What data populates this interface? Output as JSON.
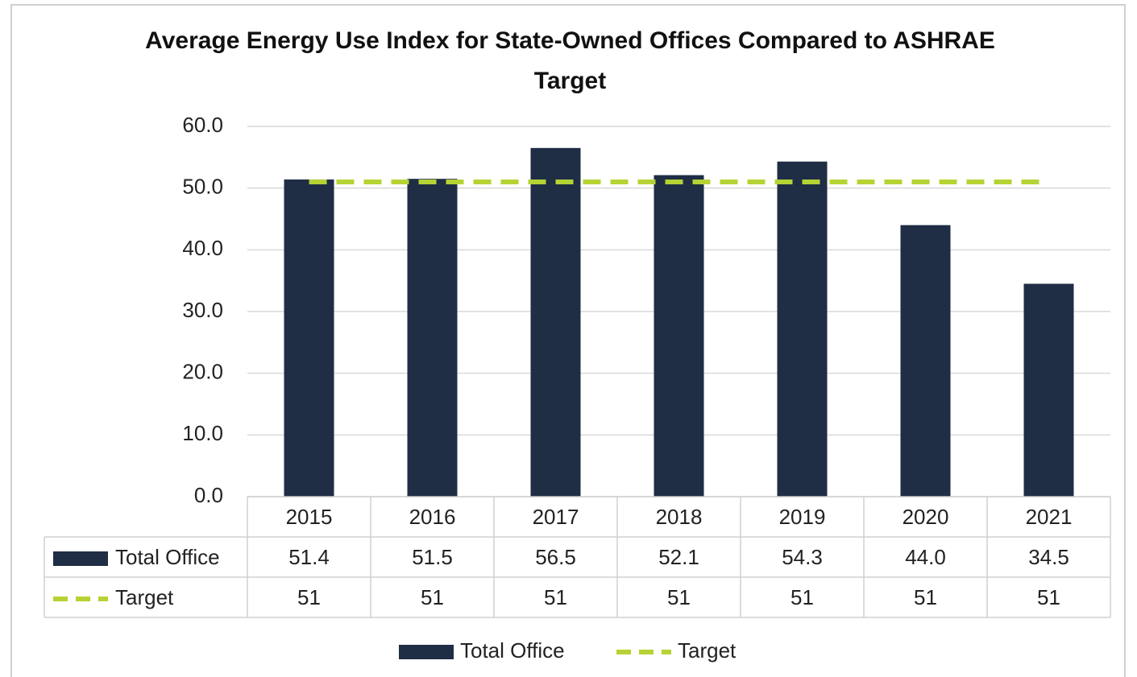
{
  "chart_data": {
    "type": "bar",
    "title": "Average Energy Use Index for State-Owned Offices Compared to ASHRAE Target",
    "categories": [
      "2015",
      "2016",
      "2017",
      "2018",
      "2019",
      "2020",
      "2021"
    ],
    "series": [
      {
        "name": "Total Office",
        "type": "bar",
        "color": "#1f2d45",
        "values": [
          51.4,
          51.5,
          56.5,
          52.1,
          54.3,
          44.0,
          34.5
        ],
        "value_labels": [
          "51.4",
          "51.5",
          "56.5",
          "52.1",
          "54.3",
          "44.0",
          "34.5"
        ]
      },
      {
        "name": "Target",
        "type": "line",
        "color": "#b5d334",
        "dashed": true,
        "values": [
          51,
          51,
          51,
          51,
          51,
          51,
          51
        ]
      }
    ],
    "ylim": [
      0,
      60
    ],
    "yticks": [
      {
        "value": 0,
        "label": "0.0"
      },
      {
        "value": 10,
        "label": "10.0"
      },
      {
        "value": 20,
        "label": "20.0"
      },
      {
        "value": 30,
        "label": "30.0"
      },
      {
        "value": 40,
        "label": "40.0"
      },
      {
        "value": 50,
        "label": "50.0"
      },
      {
        "value": 60,
        "label": "60.0"
      }
    ],
    "grid": true,
    "data_table": true,
    "legend": "bottom"
  }
}
